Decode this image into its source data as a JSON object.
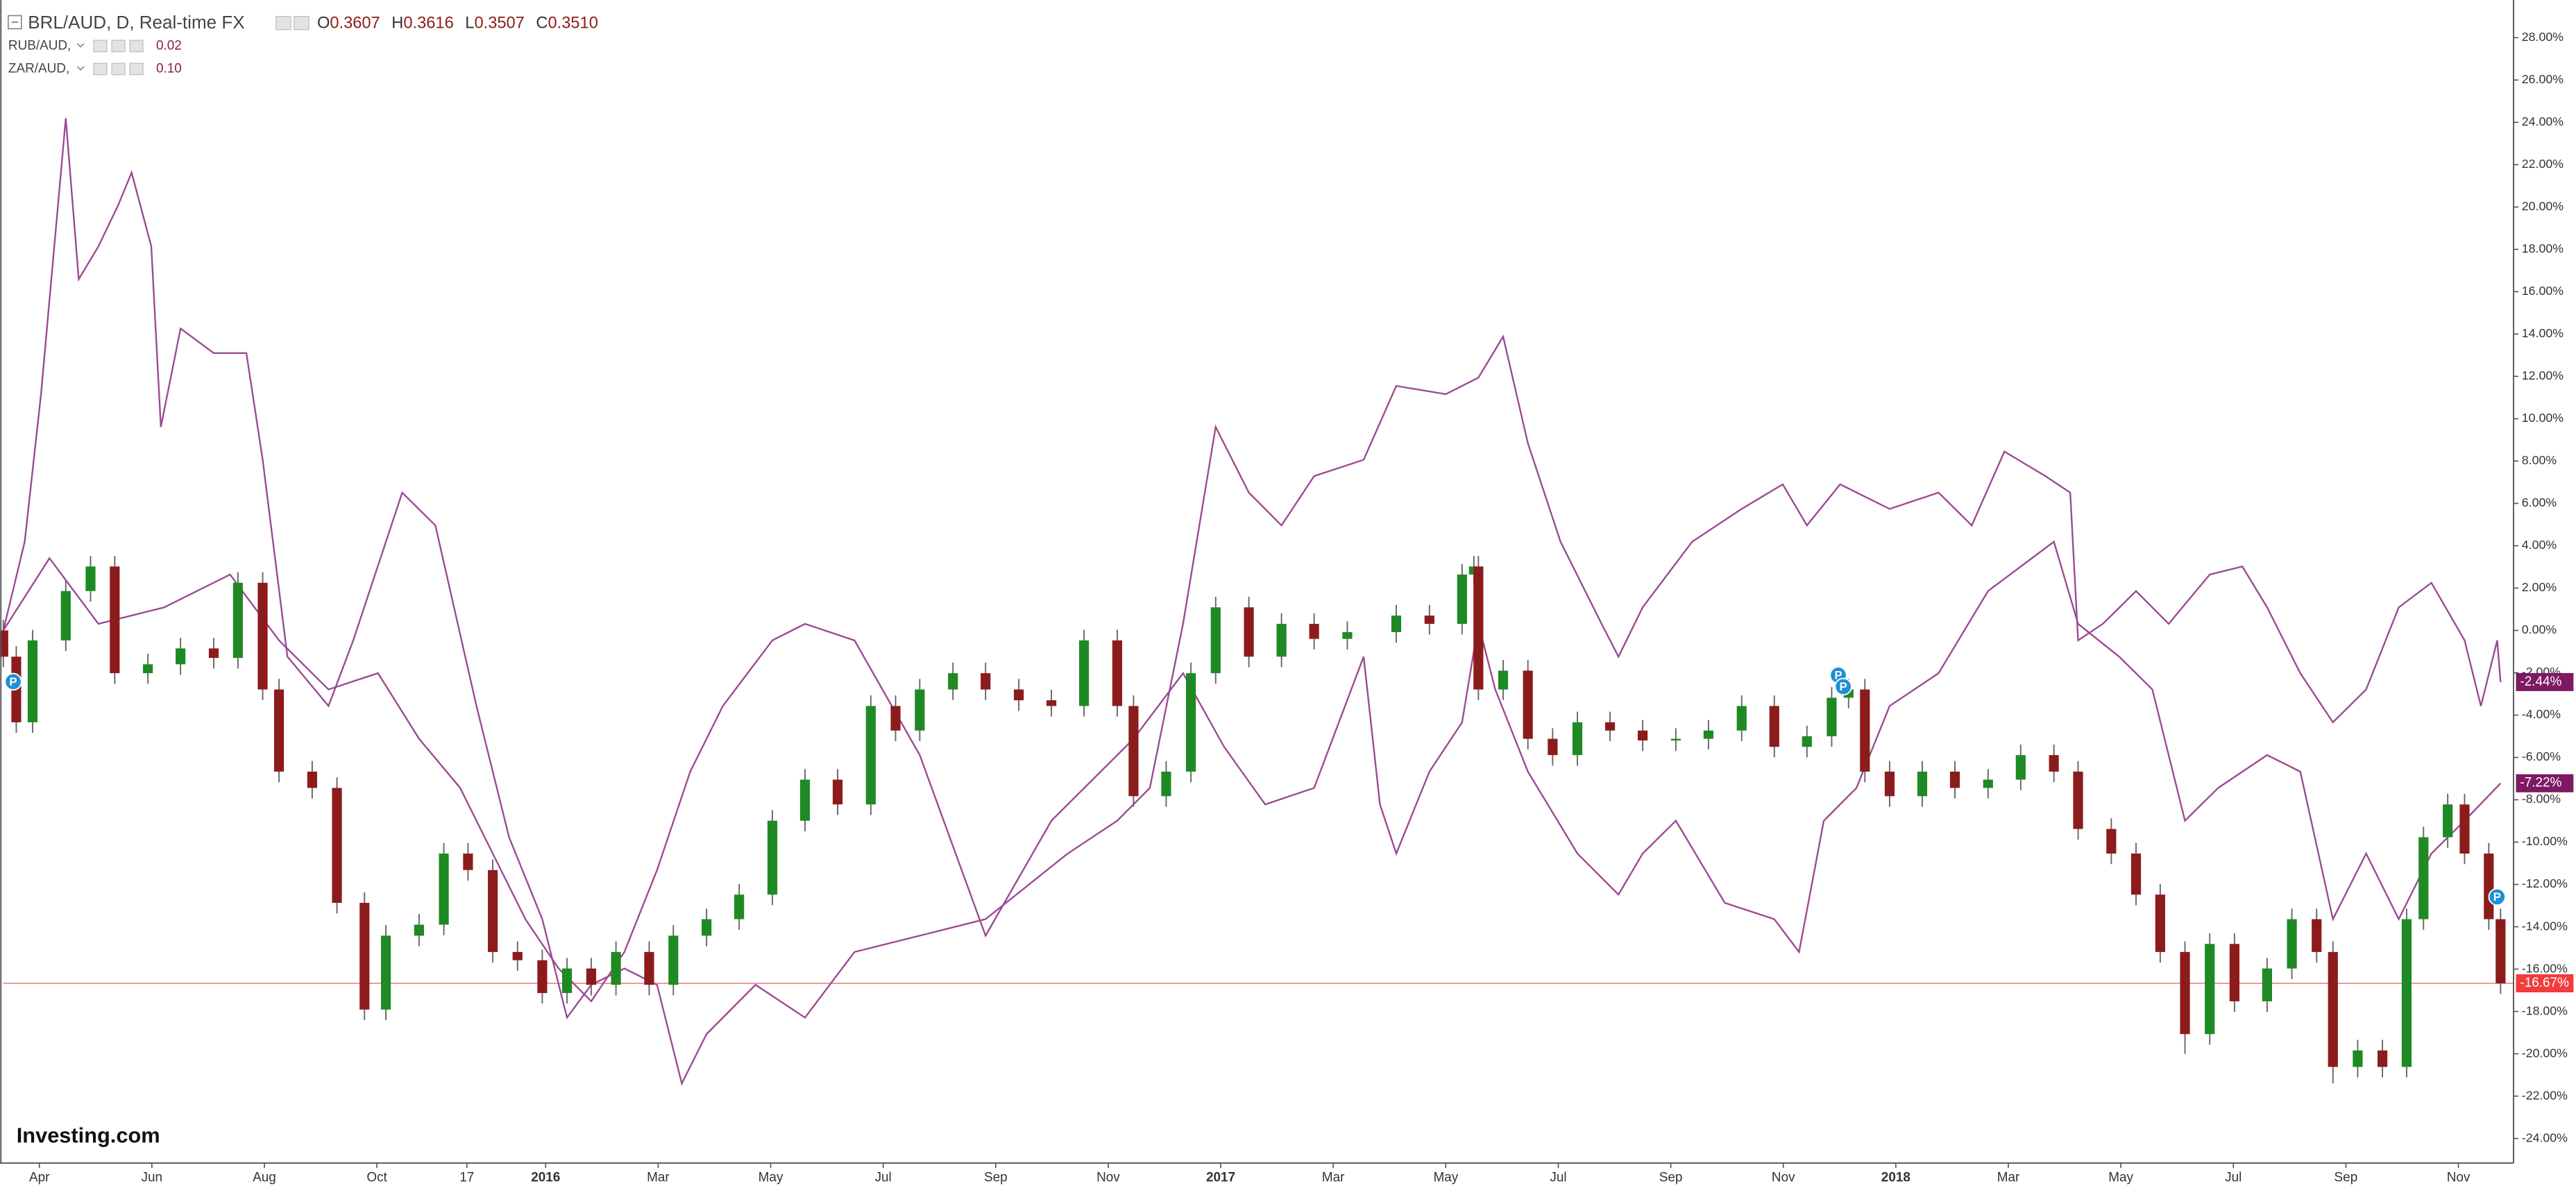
{
  "chart_data": {
    "type": "candlestick",
    "title": "BRL/AUD, D, Real-time FX",
    "ohlc_keys": [
      "O",
      "H",
      "L",
      "C"
    ],
    "ohlc_values": [
      "0.3607",
      "0.3616",
      "0.3507",
      "0.3510"
    ],
    "up_color": "#1f8a24",
    "down_color": "#8c1c1c",
    "wick_color": "#666666",
    "x": [
      2.36,
      2.59,
      2.88,
      3.47,
      3.91,
      4.34,
      4.93,
      5.51,
      6.1,
      6.53,
      6.97,
      7.26,
      7.85,
      8.29,
      8.78,
      9.16,
      9.75,
      10.19,
      10.62,
      11.06,
      11.5,
      11.94,
      12.38,
      12.81,
      13.25,
      13.84,
      14.27,
      14.86,
      15.44,
      16.03,
      16.61,
      17.19,
      17.78,
      18.22,
      18.65,
      19.24,
      19.82,
      20.41,
      20.99,
      21.57,
      22.16,
      22.45,
      23.03,
      23.47,
      23.91,
      24.5,
      25.08,
      25.66,
      26.25,
      27.12,
      27.71,
      28.29,
      28.5,
      28.58,
      29.02,
      29.46,
      29.9,
      30.34,
      30.92,
      31.5,
      32.09,
      32.67,
      33.26,
      33.84,
      34.42,
      34.86,
      35.16,
      35.45,
      35.89,
      36.47,
      37.05,
      37.64,
      38.22,
      38.81,
      39.24,
      39.83,
      40.27,
      40.7,
      41.14,
      41.58,
      42.02,
      42.6,
      43.04,
      43.48,
      43.77,
      44.21,
      44.65,
      45.08,
      45.38,
      45.81,
      46.11,
      46.54,
      46.75
    ],
    "open": [
      0,
      -1.24,
      -4.34,
      -0.47,
      1.86,
      3.02,
      -2.02,
      -1.6,
      -0.85,
      -1.3,
      2.25,
      -2.79,
      -6.67,
      -7.44,
      -12.87,
      -17.91,
      -14.42,
      -13.9,
      -10.54,
      -11.32,
      -15.19,
      -15.58,
      -17.13,
      -15.97,
      -16.74,
      -15.19,
      -16.74,
      -14.42,
      -13.64,
      -12.48,
      -8.99,
      -7.05,
      -8.22,
      -3.57,
      -4.73,
      -2.79,
      -2.02,
      -2.79,
      -3.3,
      -3.57,
      -0.47,
      -3.57,
      -7.83,
      -6.67,
      -2.02,
      1.09,
      -1.24,
      0.31,
      -0.4,
      -0.08,
      0.7,
      0.31,
      2.64,
      3.02,
      -2.79,
      -1.9,
      -5.12,
      -5.89,
      -4.34,
      -4.73,
      -5.2,
      -5.12,
      -4.73,
      -3.57,
      -5.5,
      -5.0,
      -3.18,
      -2.79,
      -6.67,
      -7.83,
      -6.67,
      -7.44,
      -7.05,
      -5.89,
      -6.67,
      -9.38,
      -10.54,
      -12.48,
      -15.19,
      -19.07,
      -14.81,
      -17.52,
      -15.97,
      -13.64,
      -15.19,
      -20.62,
      -19.84,
      -20.62,
      -13.64,
      -9.77,
      -8.22,
      -10.54,
      -13.64
    ],
    "high": [
      0.5,
      -0.74,
      0.03,
      2.36,
      3.52,
      3.52,
      -1.1,
      -0.35,
      -0.35,
      2.75,
      2.75,
      -2.29,
      -6.17,
      -6.94,
      -12.37,
      -13.92,
      -13.4,
      -10.04,
      -10.04,
      -10.82,
      -14.69,
      -15.08,
      -15.47,
      -15.47,
      -14.69,
      -14.69,
      -13.92,
      -13.14,
      -11.98,
      -8.49,
      -6.55,
      -6.55,
      -3.07,
      -3.07,
      -2.29,
      -1.52,
      -1.52,
      -2.29,
      -2.8,
      0.03,
      0.03,
      -3.07,
      -6.17,
      -1.52,
      1.59,
      1.59,
      0.81,
      0.81,
      0.42,
      1.2,
      1.2,
      3.14,
      3.52,
      3.52,
      -1.4,
      -1.4,
      -4.62,
      -3.84,
      -3.84,
      -4.23,
      -4.62,
      -4.23,
      -3.07,
      -3.07,
      -4.5,
      -2.68,
      -2.29,
      -2.29,
      -6.17,
      -6.17,
      -6.17,
      -6.55,
      -5.39,
      -5.39,
      -6.17,
      -8.88,
      -10.04,
      -11.98,
      -14.69,
      -14.31,
      -14.31,
      -15.47,
      -13.14,
      -13.14,
      -14.69,
      -19.34,
      -19.34,
      -13.14,
      -9.27,
      -7.72,
      -7.72,
      -10.04,
      -13.14
    ],
    "low": [
      -1.74,
      -4.84,
      -4.84,
      -0.97,
      1.36,
      -2.52,
      -2.52,
      -2.1,
      -1.8,
      -1.8,
      -3.29,
      -7.17,
      -7.94,
      -13.37,
      -18.41,
      -18.41,
      -14.92,
      -14.4,
      -11.82,
      -15.69,
      -16.08,
      -17.63,
      -17.63,
      -17.24,
      -17.24,
      -17.24,
      -17.24,
      -14.92,
      -14.14,
      -12.98,
      -9.49,
      -8.72,
      -8.72,
      -5.23,
      -5.23,
      -3.29,
      -3.29,
      -3.8,
      -4.07,
      -4.07,
      -4.07,
      -8.33,
      -8.33,
      -7.17,
      -2.52,
      -1.74,
      -1.74,
      -0.9,
      -0.9,
      -0.58,
      -0.19,
      -0.19,
      2.14,
      -3.29,
      -3.29,
      -5.62,
      -6.39,
      -6.39,
      -5.23,
      -5.7,
      -5.7,
      -5.62,
      -5.23,
      -6.0,
      -6.0,
      -5.5,
      -3.68,
      -7.17,
      -8.33,
      -8.33,
      -7.94,
      -7.94,
      -7.55,
      -7.17,
      -9.88,
      -11.04,
      -12.98,
      -15.69,
      -20.0,
      -19.57,
      -18.02,
      -18.02,
      -16.47,
      -15.69,
      -21.4,
      -21.12,
      -21.12,
      -21.12,
      -14.14,
      -10.27,
      -11.04,
      -14.14,
      -17.17
    ],
    "close": [
      -1.24,
      -4.34,
      -0.47,
      1.86,
      3.02,
      -2.02,
      -1.6,
      -0.85,
      -1.3,
      2.25,
      -2.79,
      -6.67,
      -7.44,
      -12.87,
      -17.91,
      -14.42,
      -13.9,
      -10.54,
      -11.32,
      -15.19,
      -15.58,
      -17.13,
      -15.97,
      -16.74,
      -15.19,
      -16.74,
      -14.42,
      -13.64,
      -12.48,
      -8.99,
      -7.05,
      -8.22,
      -3.57,
      -4.73,
      -2.79,
      -2.02,
      -2.79,
      -3.3,
      -3.57,
      -0.47,
      -3.57,
      -7.83,
      -6.67,
      -2.02,
      1.09,
      -1.24,
      0.31,
      -0.4,
      -0.08,
      0.7,
      0.31,
      2.64,
      3.02,
      -2.79,
      -1.9,
      -5.12,
      -5.89,
      -4.34,
      -4.73,
      -5.2,
      -5.12,
      -4.73,
      -3.57,
      -5.5,
      -5.0,
      -3.18,
      -2.79,
      -6.67,
      -7.83,
      -6.67,
      -7.44,
      -7.05,
      -5.89,
      -6.67,
      -9.38,
      -10.54,
      -12.48,
      -15.19,
      -19.07,
      -14.81,
      -17.52,
      -15.97,
      -13.64,
      -15.19,
      -20.62,
      -19.84,
      -20.62,
      -13.64,
      -9.77,
      -8.22,
      -10.54,
      -13.64,
      -16.67
    ],
    "series": [
      {
        "name": "RUB/AUD,",
        "legend_value": "0.02",
        "color": "#9a4a93",
        "x": [
          2.36,
          2.74,
          3.03,
          3.47,
          3.7,
          4.05,
          4.4,
          4.64,
          4.99,
          5.16,
          5.51,
          6.1,
          6.68,
          6.97,
          7.41,
          8.14,
          8.58,
          9.45,
          10.04,
          10.77,
          11.35,
          11.94,
          12.38,
          12.81,
          13.4,
          13.98,
          14.42,
          14.86,
          15.73,
          16.61,
          17.49,
          18.65,
          19.82,
          21.28,
          22.16,
          22.74,
          23.33,
          23.91,
          24.5,
          25.08,
          25.66,
          26.54,
          27.12,
          28.0,
          28.58,
          29.02,
          29.46,
          30.04,
          30.77,
          31.07,
          31.5,
          32.38,
          33.26,
          33.99,
          34.42,
          35.01,
          35.89,
          36.76,
          37.35,
          37.93,
          38.66,
          39.1,
          39.24,
          39.68,
          40.27,
          40.85,
          41.58,
          42.16,
          42.6,
          43.19,
          43.77,
          44.36,
          44.94,
          45.52,
          46.11,
          46.4,
          46.69,
          46.75
        ],
        "values": [
          0,
          4.19,
          11.16,
          24.19,
          16.59,
          18.14,
          20.08,
          21.63,
          18.14,
          9.61,
          14.26,
          13.1,
          13.1,
          8.06,
          -1.24,
          -3.57,
          -0.47,
          6.51,
          4.96,
          -3.57,
          -9.77,
          -13.64,
          -18.29,
          -16.74,
          -15.97,
          -16.74,
          -21.4,
          -19.07,
          -16.74,
          -18.29,
          -15.19,
          -14.42,
          -13.64,
          -10.54,
          -8.99,
          -7.44,
          0.31,
          9.61,
          6.51,
          4.96,
          7.29,
          8.06,
          11.55,
          11.16,
          11.94,
          13.88,
          8.84,
          4.19,
          0.31,
          -1.24,
          1.09,
          4.19,
          5.74,
          6.9,
          4.96,
          6.9,
          5.74,
          6.51,
          4.96,
          8.45,
          7.29,
          6.51,
          -0.47,
          0.31,
          1.86,
          0.31,
          2.64,
          3.02,
          1.09,
          -2.02,
          -4.34,
          -2.79,
          1.09,
          2.25,
          -0.47,
          -3.57,
          -0.47,
          -2.44
        ]
      },
      {
        "name": "ZAR/AUD,",
        "legend_value": "0.10",
        "color": "#9a4a93",
        "x": [
          2.36,
          3.18,
          4.05,
          5.22,
          6.39,
          7.26,
          8.14,
          9.02,
          9.75,
          10.48,
          11.06,
          11.64,
          12.23,
          12.81,
          13.4,
          13.98,
          14.57,
          15.15,
          16.03,
          16.61,
          17.49,
          18.65,
          19.82,
          20.99,
          22.45,
          23.33,
          24.06,
          24.79,
          25.66,
          26.54,
          26.83,
          27.12,
          27.71,
          28.29,
          28.58,
          28.88,
          29.46,
          30.34,
          31.07,
          31.5,
          32.09,
          32.96,
          33.84,
          34.28,
          34.72,
          35.3,
          35.89,
          36.76,
          37.64,
          38.81,
          39.24,
          39.97,
          40.56,
          41.14,
          41.73,
          42.6,
          43.19,
          43.77,
          44.36,
          44.94,
          45.52,
          46.11,
          46.75
        ],
        "values": [
          0,
          3.41,
          0.31,
          1.09,
          2.64,
          -0.47,
          -2.79,
          -2.02,
          -5.12,
          -7.44,
          -10.54,
          -13.64,
          -15.97,
          -17.52,
          -15.19,
          -11.32,
          -6.67,
          -3.57,
          -0.47,
          0.31,
          -0.47,
          -5.89,
          -14.42,
          -8.99,
          -5.12,
          -2.02,
          -5.5,
          -8.22,
          -7.44,
          -1.24,
          -8.22,
          -10.54,
          -6.67,
          -4.34,
          0.31,
          -2.79,
          -6.67,
          -10.54,
          -12.48,
          -10.54,
          -8.99,
          -12.87,
          -13.64,
          -15.19,
          -8.99,
          -7.44,
          -3.57,
          -2.02,
          1.86,
          4.19,
          0.31,
          -1.24,
          -2.79,
          -8.99,
          -7.44,
          -5.89,
          -6.67,
          -13.64,
          -10.54,
          -13.64,
          -10.54,
          -8.99,
          -7.22
        ]
      }
    ],
    "xlim": [
      2.36,
      46.98
    ],
    "xticks": [
      {
        "value": 3,
        "label": "Apr"
      },
      {
        "value": 5,
        "label": "Jun"
      },
      {
        "value": 7,
        "label": "Aug"
      },
      {
        "value": 9,
        "label": "Oct"
      },
      {
        "value": 10.6,
        "label": "17"
      },
      {
        "value": 12,
        "label": "2016"
      },
      {
        "value": 14,
        "label": "Mar"
      },
      {
        "value": 16,
        "label": "May"
      },
      {
        "value": 18,
        "label": "Jul"
      },
      {
        "value": 20,
        "label": "Sep"
      },
      {
        "value": 22,
        "label": "Nov"
      },
      {
        "value": 24,
        "label": "2017"
      },
      {
        "value": 26,
        "label": "Mar"
      },
      {
        "value": 28,
        "label": "May"
      },
      {
        "value": 30,
        "label": "Jul"
      },
      {
        "value": 32,
        "label": "Sep"
      },
      {
        "value": 34,
        "label": "Nov"
      },
      {
        "value": 36,
        "label": "2018"
      },
      {
        "value": 38,
        "label": "Mar"
      },
      {
        "value": 40,
        "label": "May"
      },
      {
        "value": 42,
        "label": "Jul"
      },
      {
        "value": 44,
        "label": "Sep"
      },
      {
        "value": 46,
        "label": "Nov"
      }
    ],
    "ylim": [
      -25.16,
      29.78
    ],
    "yticks": [
      {
        "value": 28,
        "label": "28.00%"
      },
      {
        "value": 26,
        "label": "26.00%"
      },
      {
        "value": 24,
        "label": "24.00%"
      },
      {
        "value": 22,
        "label": "22.00%"
      },
      {
        "value": 20,
        "label": "20.00%"
      },
      {
        "value": 18,
        "label": "18.00%"
      },
      {
        "value": 16,
        "label": "16.00%"
      },
      {
        "value": 14,
        "label": "14.00%"
      },
      {
        "value": 12,
        "label": "12.00%"
      },
      {
        "value": 10,
        "label": "10.00%"
      },
      {
        "value": 8,
        "label": "8.00%"
      },
      {
        "value": 6,
        "label": "6.00%"
      },
      {
        "value": 4,
        "label": "4.00%"
      },
      {
        "value": 2,
        "label": "2.00%"
      },
      {
        "value": 0,
        "label": "0.00%"
      },
      {
        "value": -2,
        "label": "-2.00%"
      },
      {
        "value": -4,
        "label": "-4.00%"
      },
      {
        "value": -6,
        "label": "-6.00%"
      },
      {
        "value": -8,
        "label": "-8.00%"
      },
      {
        "value": -10,
        "label": "-10.00%"
      },
      {
        "value": -12,
        "label": "-12.00%"
      },
      {
        "value": -14,
        "label": "-14.00%"
      },
      {
        "value": -16,
        "label": "-16.00%"
      },
      {
        "value": -18,
        "label": "-18.00%"
      },
      {
        "value": -20,
        "label": "-20.00%"
      },
      {
        "value": -22,
        "label": "-22.00%"
      },
      {
        "value": -24,
        "label": "-24.00%"
      }
    ],
    "annotations": [
      {
        "value": -2.44,
        "label": "-2.44%",
        "color": "#7d1a63"
      },
      {
        "value": -7.22,
        "label": "-7.22%",
        "color": "#7d1a63"
      },
      {
        "value": -16.67,
        "label": "-16.67%",
        "color": "#f03c3c"
      }
    ],
    "price_line_color": "#f08080",
    "event_label": "P",
    "watermark": "Investing.com"
  }
}
